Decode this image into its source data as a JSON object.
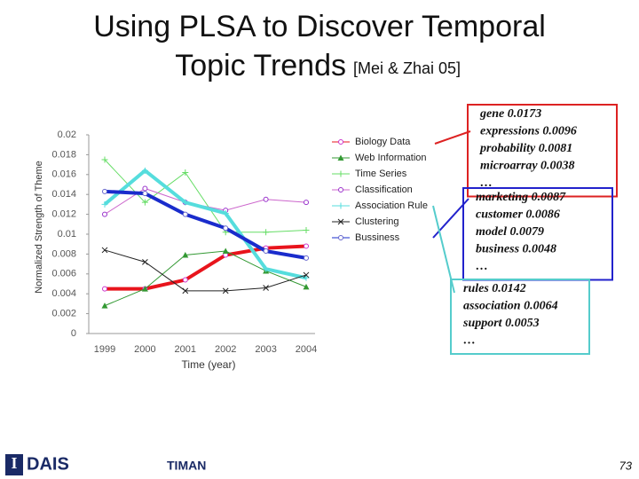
{
  "title_line1": "Using PLSA to Discover Temporal",
  "title_line2": "Topic Trends",
  "citation": "[Mei & Zhai 05]",
  "chart_data": {
    "type": "line",
    "y_label": "Normalized Strength of Theme",
    "x_label": "Time (year)",
    "categories": [
      "1999",
      "2000",
      "2001",
      "2002",
      "2003",
      "2004"
    ],
    "ylim": [
      0,
      0.02
    ],
    "yticks": [
      0,
      0.002,
      0.004,
      0.006,
      0.008,
      0.01,
      0.012,
      0.014,
      0.016,
      0.018,
      0.02
    ],
    "series": [
      {
        "name": "Biology Data",
        "color": "#e8141c",
        "width": 4,
        "marker": "circle",
        "marker_color": "#cc33cc",
        "values": [
          0.0045,
          0.0045,
          0.0054,
          0.0079,
          0.0086,
          0.0088
        ]
      },
      {
        "name": "Web Information",
        "color": "#339933",
        "width": 1,
        "marker": "triangle",
        "marker_color": "#339933",
        "values": [
          0.0028,
          0.0045,
          0.0079,
          0.0083,
          0.0063,
          0.0047
        ]
      },
      {
        "name": "Time Series",
        "color": "#66dd66",
        "width": 1,
        "marker": "plus",
        "marker_color": "#66dd66",
        "values": [
          0.0175,
          0.0132,
          0.0162,
          0.0102,
          0.0102,
          0.0104
        ]
      },
      {
        "name": "Classification",
        "color": "#cc66cc",
        "width": 1,
        "marker": "circle",
        "marker_color": "#9933cc",
        "values": [
          0.012,
          0.0146,
          0.0132,
          0.0124,
          0.0135,
          0.0132
        ]
      },
      {
        "name": "Association Rule",
        "color": "#55dddd",
        "width": 4,
        "marker": "plus",
        "marker_color": "#55dddd",
        "values": [
          0.013,
          0.0164,
          0.0132,
          0.0121,
          0.0065,
          0.0056
        ]
      },
      {
        "name": "Clustering",
        "color": "#222222",
        "width": 1,
        "marker": "x",
        "marker_color": "#222222",
        "values": [
          0.0084,
          0.0072,
          0.0043,
          0.0043,
          0.0046,
          0.0059
        ]
      },
      {
        "name": "Bussiness",
        "color": "#1a2ccc",
        "width": 4,
        "marker": "circle",
        "marker_color": "#6666cc",
        "values": [
          0.0143,
          0.0141,
          0.012,
          0.0106,
          0.0083,
          0.0076
        ]
      }
    ]
  },
  "boxes": [
    {
      "border": "#dd2222",
      "lines": [
        "gene  0.0173",
        "expressions  0.0096",
        "probability 0.0081",
        "microarray 0.0038",
        "…"
      ]
    },
    {
      "border": "#2222cc",
      "lines": [
        "marketing  0.0087",
        "customer  0.0086",
        "model 0.0079",
        "business 0.0048",
        "…"
      ]
    },
    {
      "border": "#55cccc",
      "lines": [
        "rules  0.0142",
        "association  0.0064",
        "support 0.0053",
        "…"
      ]
    }
  ],
  "footer": {
    "logo1": "DAIS",
    "logo2": "TIMAN",
    "page": "73"
  }
}
